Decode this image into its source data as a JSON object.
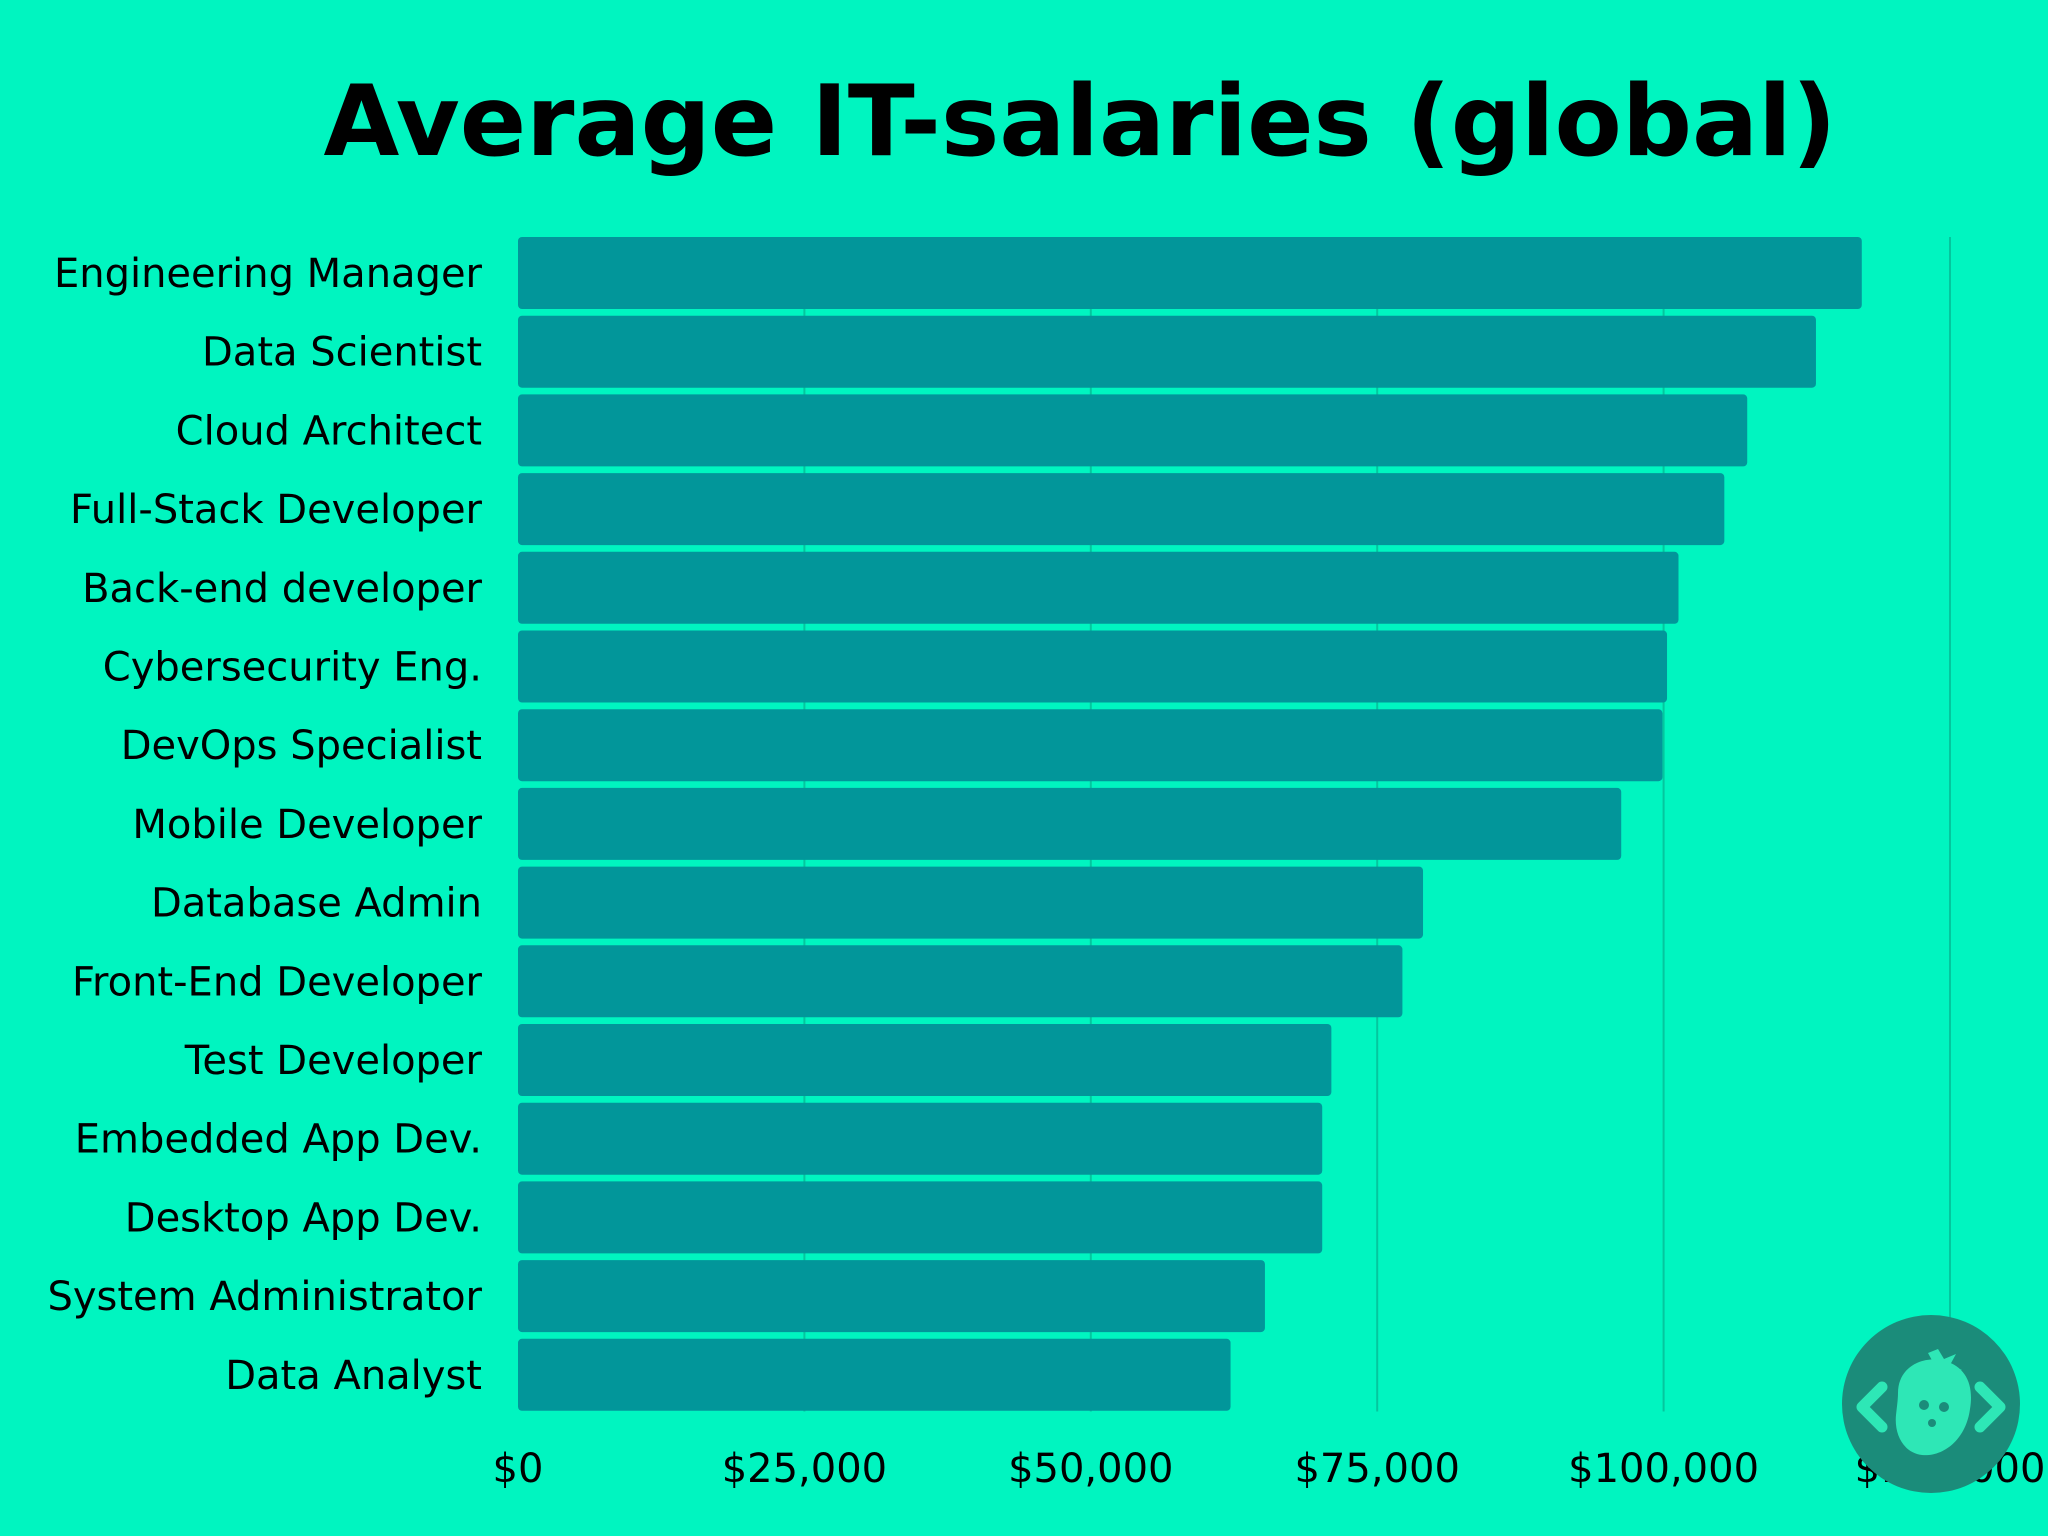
{
  "chart_data": {
    "type": "bar",
    "orientation": "horizontal",
    "title": "Average IT-salaries (global)",
    "categories": [
      "Engineering Manager",
      "Data Scientist",
      "Cloud Architect",
      "Full-Stack Developer",
      "Back-end developer",
      "Cybersecurity Eng.",
      "DevOps Specialist",
      "Mobile Developer",
      "Database Admin",
      "Front-End Developer",
      "Test Developer",
      "Embedded App Dev.",
      "Desktop App Dev.",
      "System Administrator",
      "Data Analyst"
    ],
    "values": [
      117300,
      113300,
      107300,
      105300,
      101300,
      100300,
      99900,
      96300,
      79000,
      77200,
      71000,
      70200,
      70200,
      65200,
      62200
    ],
    "xlim": [
      0,
      125000
    ],
    "xticks": [
      0,
      25000,
      50000,
      75000,
      100000,
      125000
    ],
    "xtick_labels": [
      "$0",
      "$25,000",
      "$50,000",
      "$75,000",
      "$100,000",
      "$125,000"
    ],
    "grid": true,
    "colors": {
      "background": "#00F5C0",
      "bar": "#02969A",
      "grid": "#04C69E",
      "text": "#000000"
    }
  },
  "logo": {
    "icon": "strawberry-code-logo-icon",
    "colors": {
      "circle": "#1B8C7A",
      "glyph": "#2EE7B6"
    }
  }
}
